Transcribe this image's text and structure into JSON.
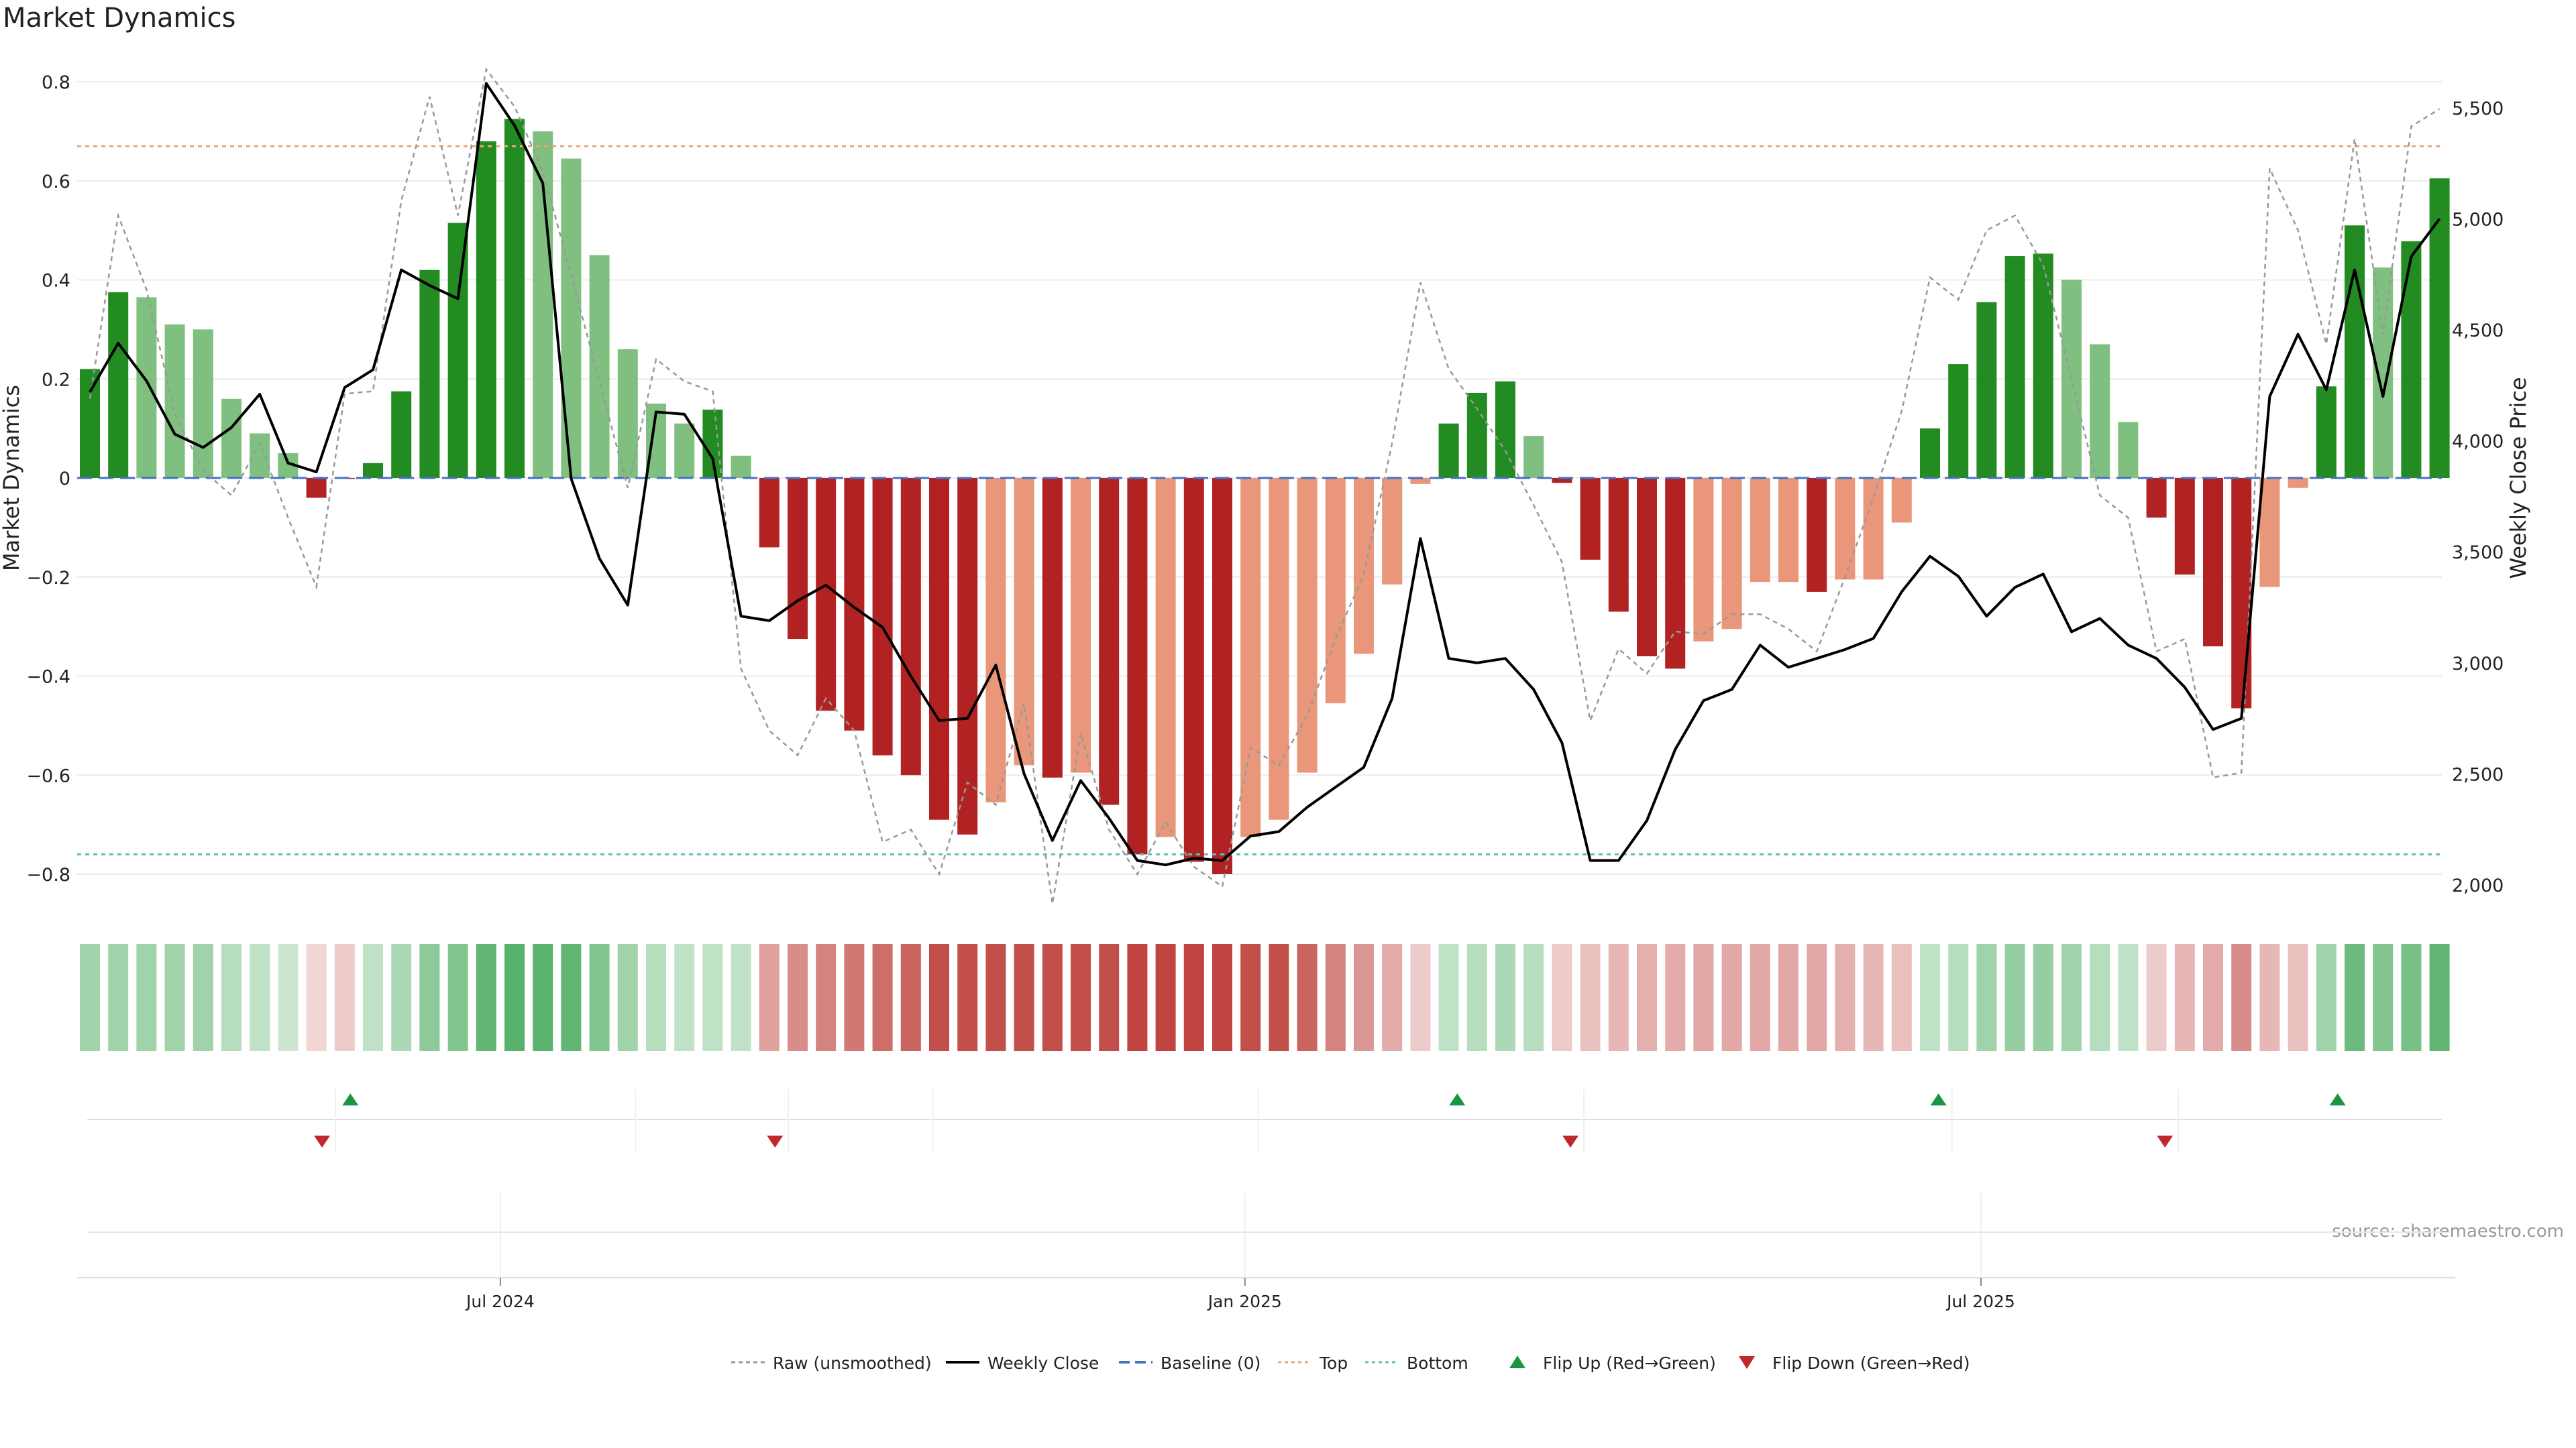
{
  "chart_data": {
    "type": "bar",
    "title": "Market Dynamics",
    "ylabel": "Market Dynamics",
    "y2label": "Weekly Close Price",
    "ylim": [
      -0.86,
      0.88
    ],
    "y2lim": [
      1950,
      5650
    ],
    "yticks": [
      -0.8,
      -0.6,
      -0.4,
      -0.2,
      0,
      0.2,
      0.4,
      0.6,
      0.8
    ],
    "ytick_labels": [
      "−0.8",
      "−0.6",
      "−0.4",
      "−0.2",
      "0",
      "0.2",
      "0.4",
      "0.6",
      "0.8"
    ],
    "y2ticks": [
      2000,
      2500,
      3000,
      3500,
      4000,
      4500,
      5000,
      5500
    ],
    "y2tick_labels": [
      "2,000",
      "2,500",
      "3,000",
      "3,500",
      "4,000",
      "4,500",
      "5,000",
      "5,500"
    ],
    "xtick_labels": [
      {
        "label": "Jul 2024",
        "index": 14.5
      },
      {
        "label": "Jan 2025",
        "index": 40.8
      },
      {
        "label": "Jul 2025",
        "index": 66.8
      }
    ],
    "top_level": 0.67,
    "bottom_level": -0.76,
    "grid": true,
    "source": "source: sharemaestro.com",
    "legend_position": "bottom-center",
    "legend": [
      {
        "key": "raw",
        "label": "Raw (unsmoothed)"
      },
      {
        "key": "close",
        "label": "Weekly Close"
      },
      {
        "key": "baseline",
        "label": "Baseline (0)"
      },
      {
        "key": "top",
        "label": "Top"
      },
      {
        "key": "bottom",
        "label": "Bottom"
      },
      {
        "key": "flip_up",
        "label": "Flip Up (Red→Green)"
      },
      {
        "key": "flip_down",
        "label": "Flip Down (Green→Red)"
      }
    ],
    "colors": {
      "strong_green": "#228b22",
      "light_green": "#7fbf7f",
      "strong_red": "#b22222",
      "light_red": "#e9967a",
      "close_line": "#000000",
      "raw_line": "#999999",
      "baseline": "#4472c4",
      "top": "#e6a878",
      "bottom": "#5bc0c0",
      "flip_up": "#1a9641",
      "flip_down": "#c0282d"
    },
    "bar_values": [
      0.22,
      0.375,
      0.365,
      0.31,
      0.3,
      0.16,
      0.09,
      0.05,
      -0.04,
      -0.002,
      0.03,
      0.175,
      0.42,
      0.515,
      0.68,
      0.725,
      0.7,
      0.645,
      0.45,
      0.26,
      0.15,
      0.11,
      0.138,
      0.045,
      -0.14,
      -0.325,
      -0.47,
      -0.51,
      -0.56,
      -0.6,
      -0.69,
      -0.72,
      -0.655,
      -0.58,
      -0.605,
      -0.595,
      -0.66,
      -0.76,
      -0.725,
      -0.775,
      -0.8,
      -0.725,
      -0.69,
      -0.595,
      -0.455,
      -0.355,
      -0.215,
      -0.012,
      0.11,
      0.172,
      0.195,
      0.085,
      -0.01,
      -0.165,
      -0.27,
      -0.36,
      -0.385,
      -0.33,
      -0.305,
      -0.21,
      -0.21,
      -0.23,
      -0.205,
      -0.205,
      -0.09,
      0.1,
      0.23,
      0.355,
      0.448,
      0.453,
      0.4,
      0.27,
      0.113,
      -0.08,
      -0.195,
      -0.34,
      -0.465,
      -0.22,
      -0.02,
      0.185,
      0.51,
      0.425,
      0.478,
      0.605
    ],
    "bar_strength": [
      "strong",
      "strong",
      "light",
      "light",
      "light",
      "light",
      "light",
      "light",
      "strong",
      "strong",
      "strong",
      "strong",
      "strong",
      "strong",
      "strong",
      "strong",
      "light",
      "light",
      "light",
      "light",
      "light",
      "light",
      "strong",
      "light",
      "strong",
      "strong",
      "strong",
      "strong",
      "strong",
      "strong",
      "strong",
      "strong",
      "light",
      "light",
      "strong",
      "light",
      "strong",
      "strong",
      "light",
      "strong",
      "strong",
      "light",
      "light",
      "light",
      "light",
      "light",
      "light",
      "light",
      "strong",
      "strong",
      "strong",
      "light",
      "strong",
      "strong",
      "strong",
      "strong",
      "strong",
      "light",
      "light",
      "light",
      "light",
      "strong",
      "light",
      "light",
      "light",
      "strong",
      "strong",
      "strong",
      "strong",
      "strong",
      "light",
      "light",
      "light",
      "strong",
      "strong",
      "strong",
      "strong",
      "light",
      "light",
      "strong",
      "strong",
      "light",
      "strong",
      "strong"
    ],
    "weekly_close": [
      4220,
      4440,
      4270,
      4030,
      3970,
      4060,
      4210,
      3900,
      3860,
      4240,
      4320,
      4770,
      4700,
      4640,
      5610,
      5420,
      5160,
      3830,
      3470,
      3260,
      4130,
      4120,
      3920,
      3210,
      3190,
      3280,
      3350,
      3250,
      3160,
      2940,
      2740,
      2750,
      2990,
      2500,
      2200,
      2470,
      2300,
      2110,
      2090,
      2120,
      2110,
      2220,
      2240,
      2350,
      2440,
      2530,
      2840,
      3560,
      3020,
      3000,
      3020,
      2880,
      2640,
      2110,
      2110,
      2290,
      2610,
      2830,
      2880,
      3080,
      2980,
      3020,
      3060,
      3110,
      3320,
      3480,
      3390,
      3210,
      3340,
      3400,
      3140,
      3200,
      3080,
      3020,
      2890,
      2700,
      2750,
      4200,
      4480,
      4230,
      4770,
      4200,
      4830,
      5000
    ],
    "raw_values": [
      0.16,
      0.53,
      0.38,
      0.13,
      0.015,
      -0.035,
      0.07,
      -0.08,
      -0.22,
      0.17,
      0.175,
      0.56,
      0.77,
      0.53,
      0.825,
      0.75,
      0.62,
      0.41,
      0.195,
      -0.02,
      0.24,
      0.195,
      0.175,
      -0.385,
      -0.51,
      -0.56,
      -0.445,
      -0.51,
      -0.735,
      -0.71,
      -0.8,
      -0.615,
      -0.66,
      -0.455,
      -0.86,
      -0.515,
      -0.71,
      -0.8,
      -0.695,
      -0.785,
      -0.825,
      -0.545,
      -0.58,
      -0.48,
      -0.325,
      -0.195,
      0.07,
      0.395,
      0.22,
      0.14,
      0.055,
      -0.055,
      -0.17,
      -0.49,
      -0.345,
      -0.395,
      -0.31,
      -0.315,
      -0.275,
      -0.275,
      -0.305,
      -0.35,
      -0.2,
      -0.04,
      0.135,
      0.405,
      0.36,
      0.5,
      0.53,
      0.43,
      0.2,
      -0.035,
      -0.08,
      -0.35,
      -0.325,
      -0.605,
      -0.595,
      0.625,
      0.5,
      0.27,
      0.685,
      0.29,
      0.71,
      0.745
    ],
    "heat_strength": [
      0.45,
      0.45,
      0.45,
      0.45,
      0.45,
      0.35,
      0.3,
      0.25,
      0.2,
      0.25,
      0.3,
      0.4,
      0.55,
      0.6,
      0.75,
      0.8,
      0.78,
      0.75,
      0.6,
      0.45,
      0.35,
      0.3,
      0.3,
      0.3,
      0.45,
      0.55,
      0.6,
      0.65,
      0.7,
      0.75,
      0.85,
      0.85,
      0.85,
      0.85,
      0.85,
      0.85,
      0.85,
      0.9,
      0.9,
      0.9,
      0.9,
      0.85,
      0.85,
      0.75,
      0.6,
      0.5,
      0.4,
      0.25,
      0.3,
      0.35,
      0.4,
      0.35,
      0.25,
      0.3,
      0.35,
      0.38,
      0.4,
      0.42,
      0.42,
      0.42,
      0.42,
      0.42,
      0.38,
      0.35,
      0.3,
      0.3,
      0.35,
      0.45,
      0.5,
      0.5,
      0.45,
      0.35,
      0.3,
      0.25,
      0.35,
      0.4,
      0.55,
      0.35,
      0.3,
      0.45,
      0.7,
      0.6,
      0.65,
      0.75
    ],
    "flip_up_index": [
      9.2,
      48.3,
      65.3,
      79.4
    ],
    "flip_down_index": [
      8.2,
      24.2,
      52.3,
      73.3
    ]
  }
}
